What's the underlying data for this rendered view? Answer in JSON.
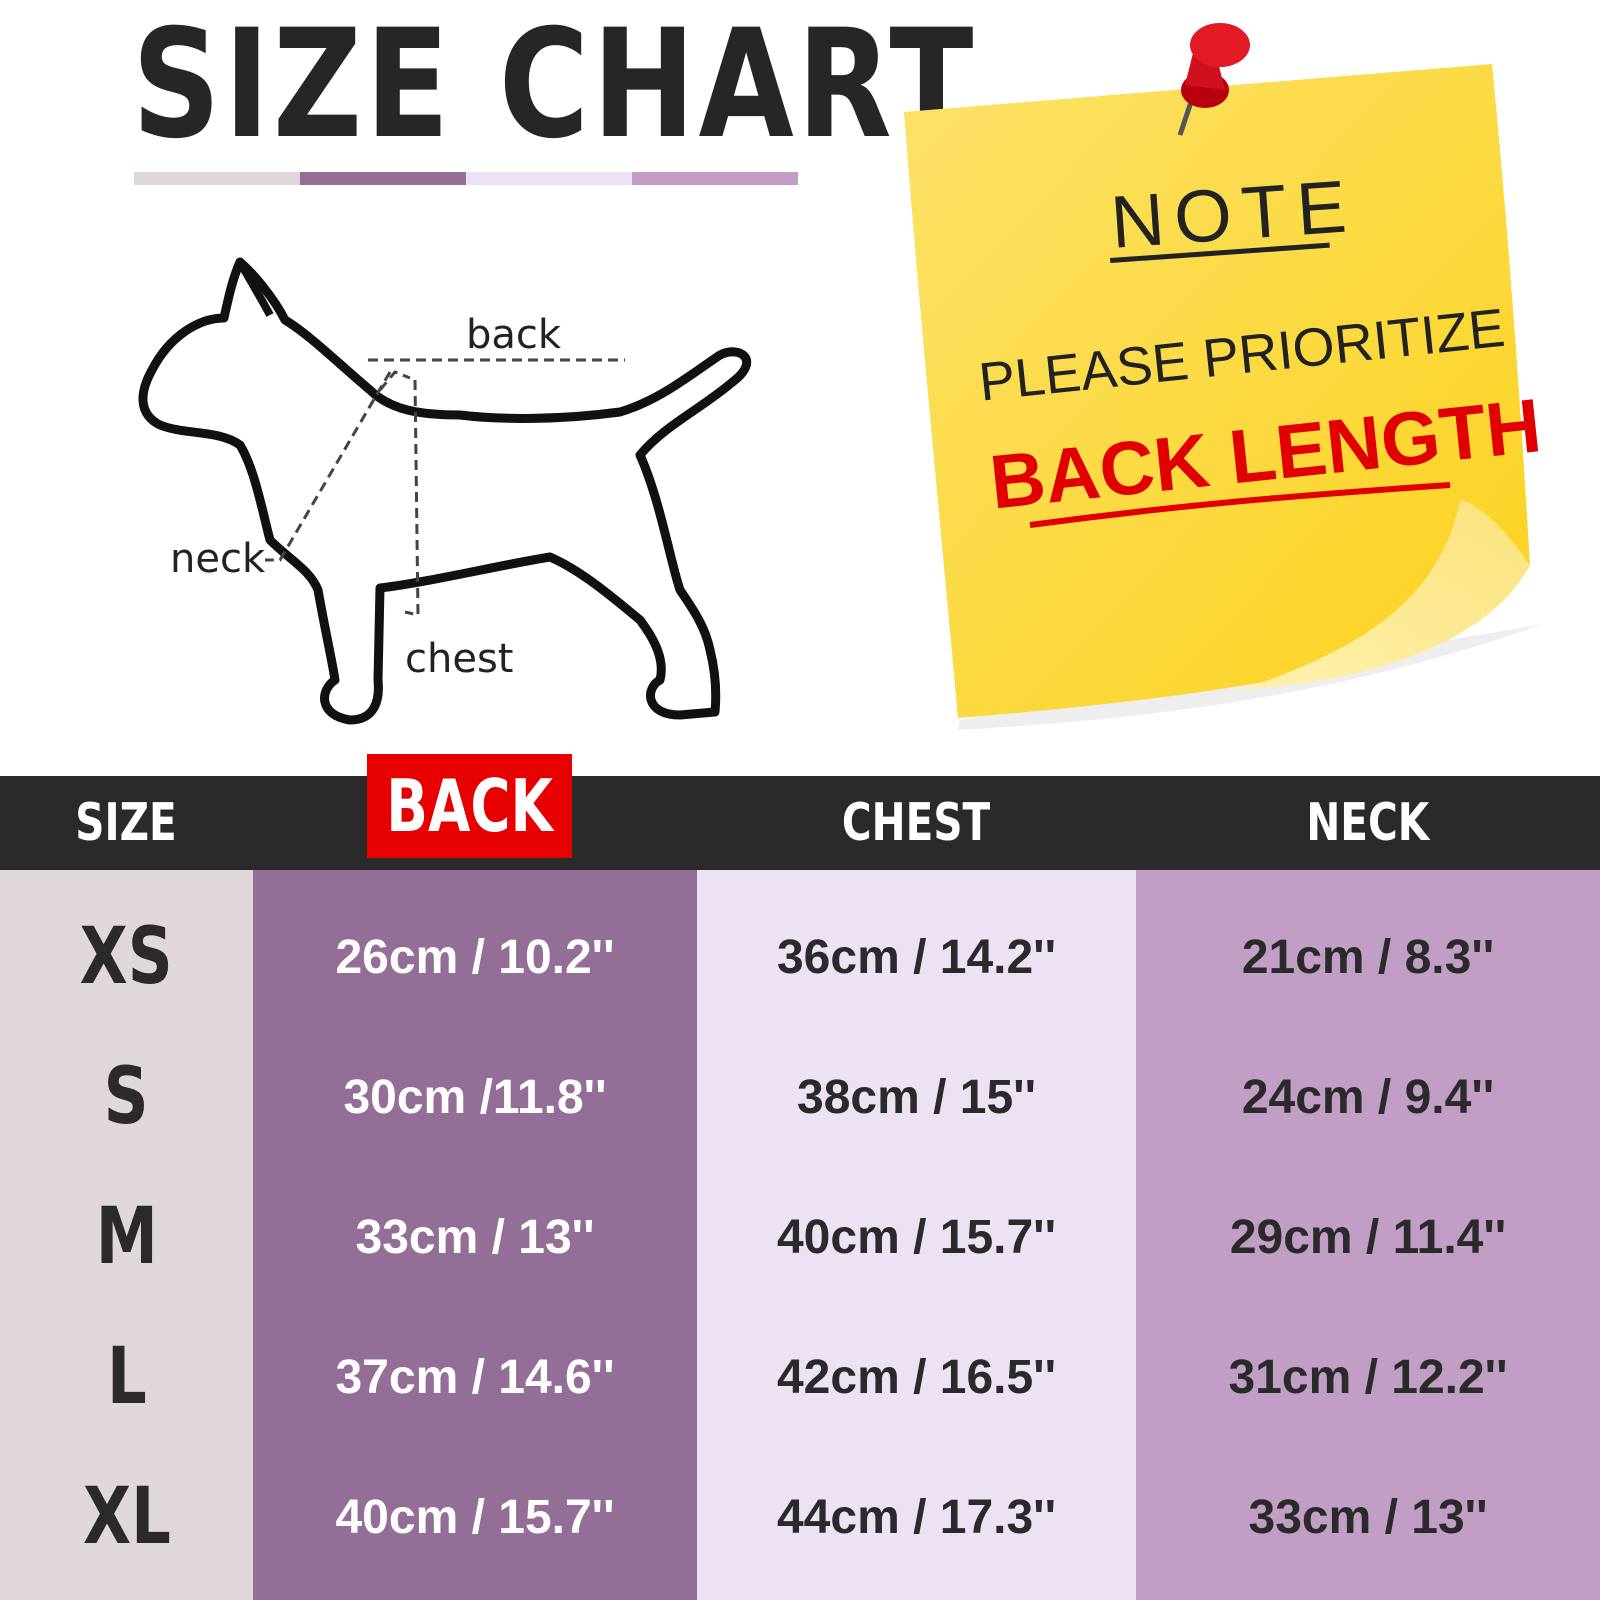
{
  "title": "SIZE CHART",
  "title_bar_colors": [
    "#e0d7da",
    "#936f97",
    "#ede2f3",
    "#c29dc6"
  ],
  "diagram": {
    "back_label": "back",
    "neck_label": "neck",
    "chest_label": "chest"
  },
  "note": {
    "title": "NOTE",
    "line1": "PLEASE PRIORITIZE",
    "line2": "BACK LENGTH",
    "paper_color": "#fdd835",
    "accent_color": "#e00000",
    "pin_icon": "pushpin-icon"
  },
  "table": {
    "headers": [
      "SIZE",
      "BACK",
      "CHEST",
      "NECK"
    ],
    "highlighted_header": "BACK",
    "header_bg": "#2a2a2a",
    "column_colors": [
      "#e0d7da",
      "#936f97",
      "#ede2f3",
      "#c29dc6"
    ],
    "rows": [
      {
        "size": "XS",
        "back": "26cm / 10.2''",
        "chest": "36cm / 14.2''",
        "neck": "21cm / 8.3''"
      },
      {
        "size": "S",
        "back": "30cm /11.8''",
        "chest": "38cm / 15''",
        "neck": "24cm / 9.4''"
      },
      {
        "size": "M",
        "back": "33cm / 13''",
        "chest": "40cm / 15.7''",
        "neck": "29cm / 11.4''"
      },
      {
        "size": "L",
        "back": "37cm / 14.6''",
        "chest": "42cm / 16.5''",
        "neck": "31cm / 12.2''"
      },
      {
        "size": "XL",
        "back": "40cm / 15.7''",
        "chest": "44cm / 17.3''",
        "neck": "33cm / 13''"
      }
    ]
  }
}
